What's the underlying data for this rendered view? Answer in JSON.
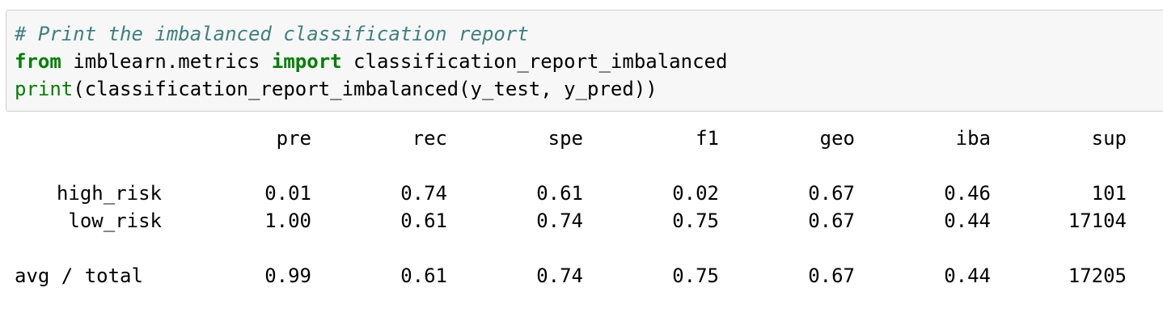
{
  "code_cell": {
    "comment": "# Print the imbalanced classification report",
    "line2_kw1": "from",
    "line2_mod": " imblearn.metrics ",
    "line2_kw2": "import",
    "line2_name": " classification_report_imbalanced",
    "line3_builtin": "print",
    "line3_rest": "(classification_report_imbalanced(y_test, y_pred))"
  },
  "report": {
    "columns": [
      "pre",
      "rec",
      "spe",
      "f1",
      "geo",
      "iba",
      "sup"
    ],
    "rows": [
      {
        "label": "high_risk",
        "values": [
          "0.01",
          "0.74",
          "0.61",
          "0.02",
          "0.67",
          "0.46",
          "101"
        ]
      },
      {
        "label": "low_risk",
        "values": [
          "1.00",
          "0.61",
          "0.74",
          "0.75",
          "0.67",
          "0.44",
          "17104"
        ]
      },
      {
        "label": "avg / total",
        "values": [
          "0.99",
          "0.61",
          "0.74",
          "0.75",
          "0.67",
          "0.44",
          "17205"
        ]
      }
    ]
  }
}
